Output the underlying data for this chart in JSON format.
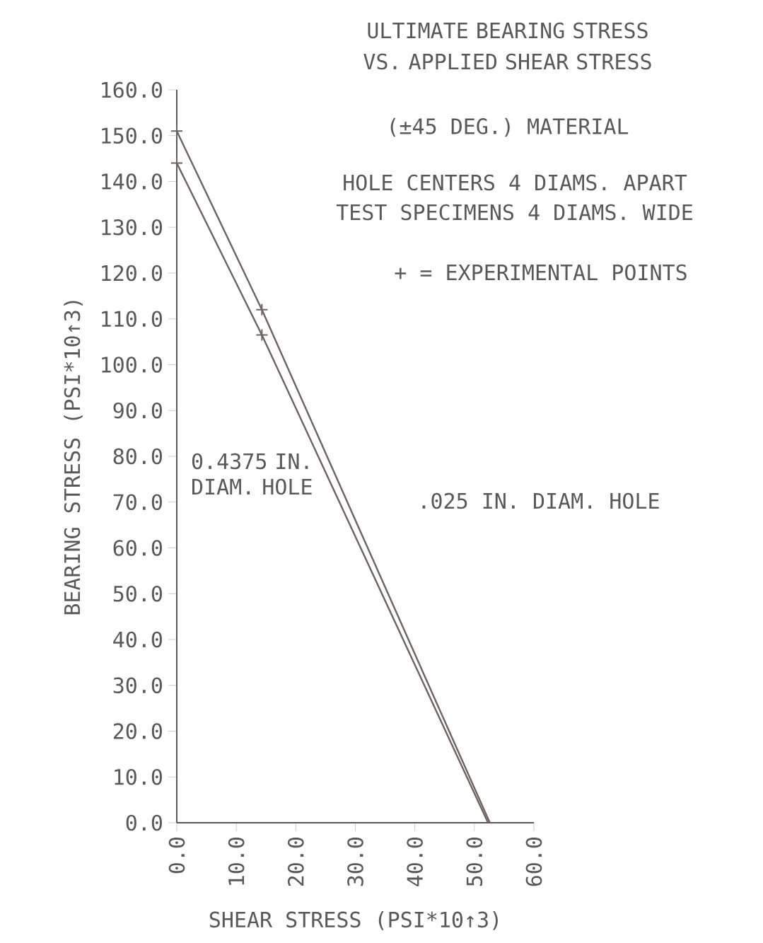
{
  "chart_data": {
    "type": "line",
    "title": "ULTIMATE BEARING STRESS VS. APPLIED SHEAR STRESS",
    "subtitle": "(±45 DEG.) MATERIAL",
    "xlabel": "SHEAR STRESS (PSI*10↑3)",
    "ylabel": "BEARING STRESS (PSI*10↑3)",
    "xlim": [
      0,
      60
    ],
    "ylim": [
      0,
      160
    ],
    "xticks": [
      {
        "value": 0,
        "label": "0.0"
      },
      {
        "value": 10,
        "label": "10.0"
      },
      {
        "value": 20,
        "label": "20.0"
      },
      {
        "value": 30,
        "label": "30.0"
      },
      {
        "value": 40,
        "label": "40.0"
      },
      {
        "value": 50,
        "label": "50.0"
      },
      {
        "value": 60,
        "label": "60.0"
      }
    ],
    "yticks": [
      {
        "value": 0,
        "label": "0.0"
      },
      {
        "value": 10,
        "label": "10.0"
      },
      {
        "value": 20,
        "label": "20.0"
      },
      {
        "value": 30,
        "label": "30.0"
      },
      {
        "value": 40,
        "label": "40.0"
      },
      {
        "value": 50,
        "label": "50.0"
      },
      {
        "value": 60,
        "label": "60.0"
      },
      {
        "value": 70,
        "label": "70.0"
      },
      {
        "value": 80,
        "label": "80.0"
      },
      {
        "value": 90,
        "label": "90.0"
      },
      {
        "value": 100,
        "label": "100.0"
      },
      {
        "value": 110,
        "label": "110.0"
      },
      {
        "value": 120,
        "label": "120.0"
      },
      {
        "value": 130,
        "label": "130.0"
      },
      {
        "value": 140,
        "label": "140.0"
      },
      {
        "value": 150,
        "label": "150.0"
      },
      {
        "value": 160,
        "label": "160.0"
      }
    ],
    "series": [
      {
        "color": "#6e6264",
        "x": [
          0,
          14.3,
          52.6
        ],
        "values": [
          151,
          112,
          0
        ]
      },
      {
        "color": "#6e6264",
        "x": [
          0,
          14.3,
          52.3
        ],
        "values": [
          144,
          106.5,
          0
        ]
      },
      {
        "type": "scatter",
        "marker": "cross",
        "color": "#6e6264",
        "x": [
          0,
          14.3
        ],
        "values": [
          151,
          112
        ]
      },
      {
        "type": "scatter",
        "marker": "cross",
        "color": "#6e6264",
        "x": [
          0,
          14.3
        ],
        "values": [
          144,
          106.5
        ]
      }
    ],
    "annotations": [
      "HOLE CENTERS 4 DIAMS. APART",
      "TEST SPECIMENS 4 DIAMS. WIDE",
      "+ = EXPERIMENTAL POINTS",
      "0.4375 IN. DIAM. HOLE",
      ".025 IN. DIAM. HOLE"
    ],
    "grid": false
  }
}
